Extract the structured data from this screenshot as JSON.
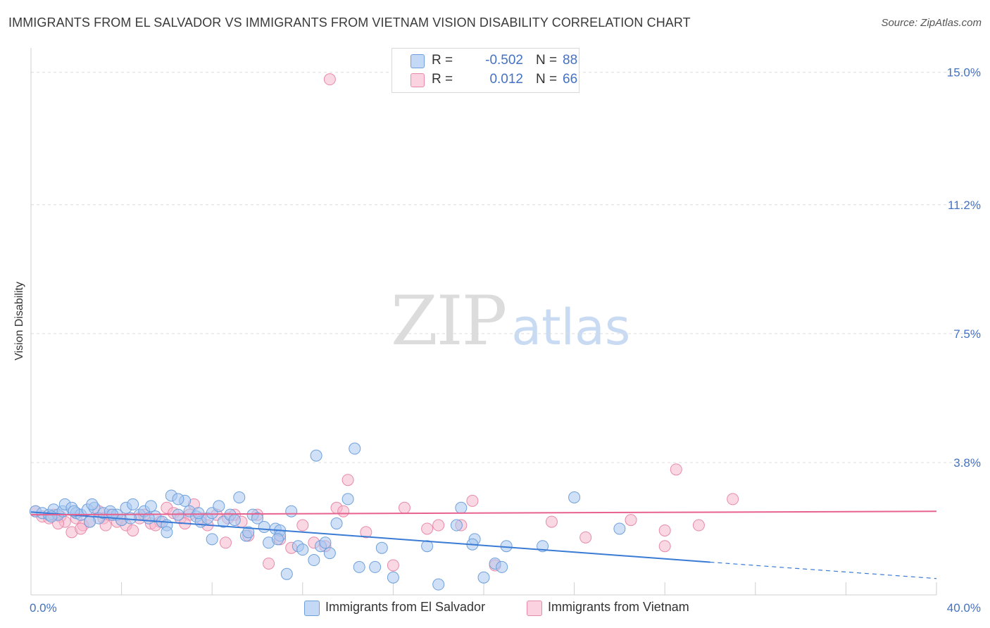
{
  "header": {
    "title": "IMMIGRANTS FROM EL SALVADOR VS IMMIGRANTS FROM VIETNAM VISION DISABILITY CORRELATION CHART",
    "source": "Source: ZipAtlas.com"
  },
  "watermark": {
    "zip": "ZIP",
    "atlas": "atlas"
  },
  "legend": {
    "rows": [
      {
        "r_label": "R =",
        "r_value": "-0.502",
        "n_label": "N =",
        "n_value": "88",
        "color": "#a9c8f0"
      },
      {
        "r_label": "R =",
        "r_value": "0.012",
        "n_label": "N =",
        "n_value": "66",
        "color": "#f5b8cc"
      }
    ]
  },
  "bottom_legend": [
    {
      "label": "Immigrants from El Salvador",
      "color": "#a9c8f0"
    },
    {
      "label": "Immigrants from Vietnam",
      "color": "#f5b8cc"
    }
  ],
  "colors": {
    "blue_fill": "#a9c8f0",
    "blue_stroke": "#6fa0dc",
    "blue_line": "#3a7bd5",
    "pink_fill": "#f5b8cc",
    "pink_stroke": "#e88aaa",
    "pink_line": "#e8628e",
    "grid": "#dcdcdc",
    "tick_text": "#4472c4"
  },
  "chart_data": {
    "type": "scatter",
    "title": "IMMIGRANTS FROM EL SALVADOR VS IMMIGRANTS FROM VIETNAM VISION DISABILITY CORRELATION CHART",
    "xlabel": "",
    "ylabel": "Vision Disability",
    "xlim": [
      0,
      40
    ],
    "ylim": [
      0,
      15.5
    ],
    "x_tick_labels": [
      "0.0%",
      "40.0%"
    ],
    "y_ticks": [
      3.8,
      7.5,
      11.2,
      15.0
    ],
    "y_tick_labels": [
      "3.8%",
      "7.5%",
      "11.2%",
      "15.0%"
    ],
    "grid": "horizontal dashed",
    "legend_position": "top-center",
    "series": [
      {
        "name": "Immigrants from El Salvador",
        "color": "#a9c8f0",
        "r": -0.502,
        "n": 88,
        "trend": {
          "x": [
            0,
            30
          ],
          "y": [
            2.38,
            0.94
          ],
          "dashed_to": [
            40,
            0.47
          ]
        },
        "points": [
          [
            0.2,
            2.4
          ],
          [
            0.5,
            2.35
          ],
          [
            0.8,
            2.3
          ],
          [
            1.0,
            2.45
          ],
          [
            1.2,
            2.3
          ],
          [
            1.4,
            2.4
          ],
          [
            1.5,
            2.6
          ],
          [
            1.8,
            2.5
          ],
          [
            2.0,
            2.35
          ],
          [
            2.2,
            2.3
          ],
          [
            2.5,
            2.45
          ],
          [
            2.8,
            2.5
          ],
          [
            3.0,
            2.2
          ],
          [
            2.7,
            2.6
          ],
          [
            3.2,
            2.35
          ],
          [
            3.5,
            2.4
          ],
          [
            3.8,
            2.3
          ],
          [
            4.0,
            2.15
          ],
          [
            4.2,
            2.5
          ],
          [
            4.5,
            2.6
          ],
          [
            4.8,
            2.3
          ],
          [
            5.0,
            2.4
          ],
          [
            5.3,
            2.55
          ],
          [
            5.5,
            2.25
          ],
          [
            5.8,
            2.1
          ],
          [
            6.0,
            2.0
          ],
          [
            6.2,
            2.85
          ],
          [
            6.5,
            2.3
          ],
          [
            6.8,
            2.7
          ],
          [
            7.0,
            2.4
          ],
          [
            7.3,
            2.25
          ],
          [
            7.5,
            2.1
          ],
          [
            7.8,
            2.2
          ],
          [
            8.0,
            2.35
          ],
          [
            8.3,
            2.55
          ],
          [
            8.5,
            2.1
          ],
          [
            8.8,
            2.3
          ],
          [
            9.0,
            2.15
          ],
          [
            9.2,
            2.8
          ],
          [
            9.5,
            1.7
          ],
          [
            9.8,
            2.3
          ],
          [
            10.0,
            2.2
          ],
          [
            10.3,
            1.95
          ],
          [
            10.5,
            1.5
          ],
          [
            10.8,
            1.9
          ],
          [
            11.0,
            1.85
          ],
          [
            11.3,
            0.6
          ],
          [
            11.5,
            2.4
          ],
          [
            11.8,
            1.4
          ],
          [
            12.5,
            1.0
          ],
          [
            12.8,
            1.4
          ],
          [
            13.2,
            1.2
          ],
          [
            13.5,
            2.05
          ],
          [
            14.0,
            2.75
          ],
          [
            14.5,
            0.8
          ],
          [
            15.2,
            0.8
          ],
          [
            15.5,
            1.35
          ],
          [
            16.0,
            0.5
          ],
          [
            17.5,
            1.4
          ],
          [
            18.0,
            0.3
          ],
          [
            18.8,
            2.0
          ],
          [
            19.0,
            2.5
          ],
          [
            19.6,
            1.6
          ],
          [
            19.5,
            1.45
          ],
          [
            20.0,
            0.5
          ],
          [
            20.5,
            0.9
          ],
          [
            20.8,
            0.8
          ],
          [
            21.0,
            1.4
          ],
          [
            22.6,
            1.4
          ],
          [
            24.0,
            2.8
          ],
          [
            26.0,
            1.9
          ],
          [
            6.5,
            2.75
          ],
          [
            7.4,
            2.35
          ],
          [
            12.6,
            4.0
          ],
          [
            14.3,
            4.2
          ],
          [
            11.0,
            1.7
          ],
          [
            12.0,
            1.3
          ],
          [
            13.0,
            1.5
          ],
          [
            3.6,
            2.3
          ],
          [
            5.2,
            2.2
          ],
          [
            0.9,
            2.25
          ],
          [
            1.9,
            2.4
          ],
          [
            2.6,
            2.1
          ],
          [
            4.4,
            2.2
          ],
          [
            6.0,
            1.8
          ],
          [
            8.0,
            1.6
          ],
          [
            9.6,
            1.8
          ],
          [
            10.9,
            1.6
          ]
        ]
      },
      {
        "name": "Immigrants from Vietnam",
        "color": "#f5b8cc",
        "r": 0.012,
        "n": 66,
        "trend": {
          "x": [
            0,
            40
          ],
          "y": [
            2.3,
            2.4
          ]
        },
        "points": [
          [
            0.2,
            2.4
          ],
          [
            0.5,
            2.25
          ],
          [
            0.8,
            2.2
          ],
          [
            1.0,
            2.3
          ],
          [
            1.3,
            2.25
          ],
          [
            1.5,
            2.1
          ],
          [
            1.8,
            1.8
          ],
          [
            2.0,
            2.2
          ],
          [
            2.3,
            2.0
          ],
          [
            2.6,
            2.1
          ],
          [
            3.0,
            2.4
          ],
          [
            3.2,
            2.2
          ],
          [
            3.5,
            2.3
          ],
          [
            3.8,
            2.1
          ],
          [
            4.2,
            2.0
          ],
          [
            4.5,
            1.85
          ],
          [
            4.8,
            2.2
          ],
          [
            5.0,
            2.3
          ],
          [
            5.3,
            2.05
          ],
          [
            5.7,
            2.1
          ],
          [
            6.0,
            2.5
          ],
          [
            6.3,
            2.35
          ],
          [
            6.6,
            2.2
          ],
          [
            7.0,
            2.3
          ],
          [
            7.2,
            2.6
          ],
          [
            7.5,
            2.2
          ],
          [
            7.8,
            2.0
          ],
          [
            8.2,
            2.3
          ],
          [
            8.6,
            1.5
          ],
          [
            9.0,
            2.3
          ],
          [
            9.3,
            2.1
          ],
          [
            9.6,
            1.7
          ],
          [
            10.0,
            2.3
          ],
          [
            10.5,
            0.9
          ],
          [
            11.0,
            1.6
          ],
          [
            11.5,
            1.35
          ],
          [
            12.0,
            2.0
          ],
          [
            12.5,
            1.5
          ],
          [
            13.0,
            1.4
          ],
          [
            13.5,
            2.5
          ],
          [
            13.8,
            2.4
          ],
          [
            14.0,
            3.3
          ],
          [
            14.8,
            1.8
          ],
          [
            16.0,
            0.85
          ],
          [
            16.5,
            2.5
          ],
          [
            17.5,
            1.9
          ],
          [
            18.0,
            2.0
          ],
          [
            19.0,
            2.0
          ],
          [
            19.5,
            2.7
          ],
          [
            20.5,
            0.85
          ],
          [
            23.0,
            2.1
          ],
          [
            24.5,
            1.65
          ],
          [
            26.5,
            2.15
          ],
          [
            28.0,
            1.85
          ],
          [
            28.0,
            1.4
          ],
          [
            29.5,
            2.0
          ],
          [
            31.0,
            2.75
          ],
          [
            13.2,
            14.8
          ],
          [
            28.5,
            3.6
          ],
          [
            1.2,
            2.05
          ],
          [
            2.2,
            1.9
          ],
          [
            3.3,
            2.0
          ],
          [
            4.0,
            2.15
          ],
          [
            5.5,
            2.0
          ],
          [
            6.8,
            2.05
          ],
          [
            8.7,
            2.2
          ]
        ]
      }
    ]
  }
}
